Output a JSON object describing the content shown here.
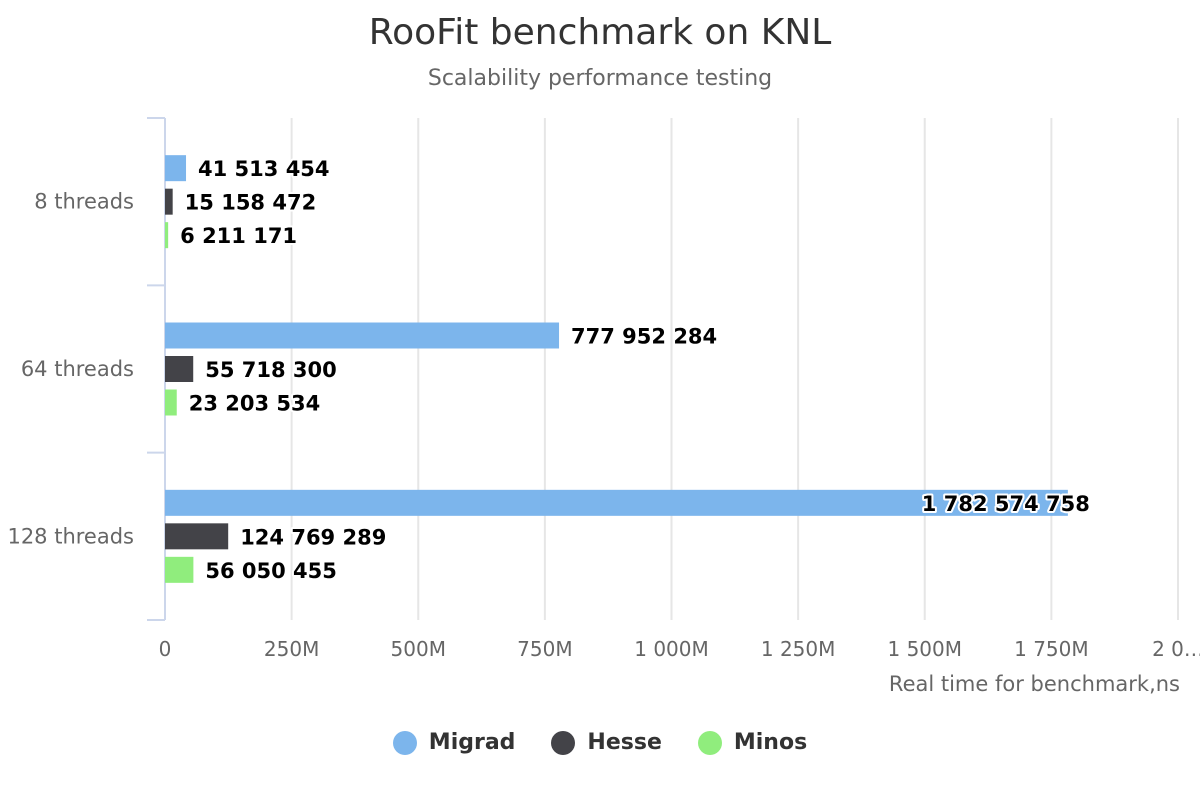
{
  "title": "RooFit benchmark on KNL",
  "subtitle": "Scalability performance testing",
  "chart_data": {
    "type": "bar",
    "orientation": "horizontal",
    "title": "RooFit benchmark on KNL",
    "subtitle": "Scalability performance testing",
    "categories": [
      "8 threads",
      "64 threads",
      "128 threads"
    ],
    "series": [
      {
        "name": "Migrad",
        "color": "#7cb5ec",
        "values": [
          41513454,
          777952284,
          1782574758
        ],
        "labels": [
          "41 513 454",
          "777 952 284",
          "1 782 574 758"
        ]
      },
      {
        "name": "Hesse",
        "color": "#434348",
        "values": [
          15158472,
          55718300,
          124769289
        ],
        "labels": [
          "15 158 472",
          "55 718 300",
          "124 769 289"
        ]
      },
      {
        "name": "Minos",
        "color": "#90ed7d",
        "values": [
          6211171,
          23203534,
          56050455
        ],
        "labels": [
          "6 211 171",
          "23 203 534",
          "56 050 455"
        ]
      }
    ],
    "xlabel": "Real time for benchmark,ns",
    "ylabel": "",
    "xlim": [
      0,
      2000000000
    ],
    "ticks": [
      0,
      250000000,
      500000000,
      750000000,
      1000000000,
      1250000000,
      1500000000,
      1750000000,
      2000000000
    ],
    "tick_labels": [
      "0",
      "250M",
      "500M",
      "750M",
      "1 000M",
      "1 250M",
      "1 500M",
      "1 750M",
      "2 0…"
    ],
    "grid": true,
    "legend_position": "bottom-center"
  }
}
